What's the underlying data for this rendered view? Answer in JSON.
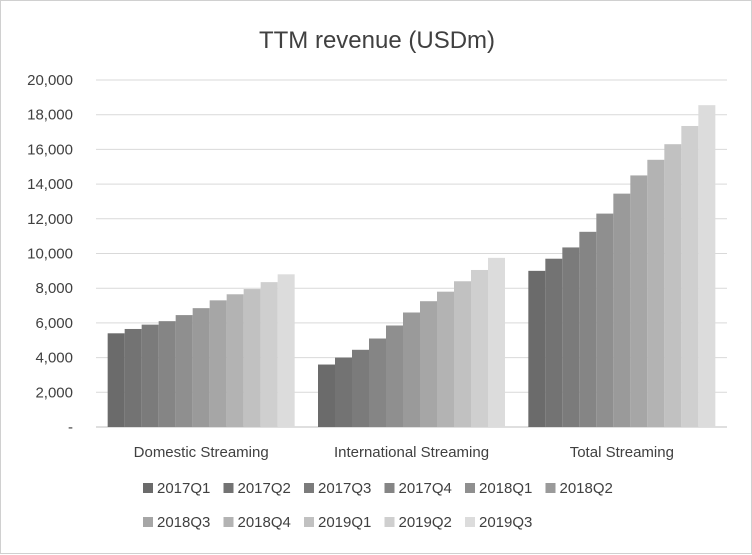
{
  "chart_data": {
    "type": "bar",
    "title": "TTM revenue (USDm)",
    "xlabel": "",
    "ylabel": "",
    "ylim": [
      0,
      20000
    ],
    "yticks": [
      0,
      2000,
      4000,
      6000,
      8000,
      10000,
      12000,
      14000,
      16000,
      18000,
      20000
    ],
    "ytick_labels": [
      "-",
      "2,000",
      "4,000",
      "6,000",
      "8,000",
      "10,000",
      "12,000",
      "14,000",
      "16,000",
      "18,000",
      "20,000"
    ],
    "grid": "horizontal",
    "legend_position": "bottom",
    "categories": [
      "Domestic Streaming",
      "International Streaming",
      "Total Streaming"
    ],
    "series": [
      {
        "name": "2017Q1",
        "color": "#6b6b6b",
        "values": [
          5400,
          3600,
          9000
        ]
      },
      {
        "name": "2017Q2",
        "color": "#737373",
        "values": [
          5650,
          4000,
          9700
        ]
      },
      {
        "name": "2017Q3",
        "color": "#7b7b7b",
        "values": [
          5900,
          4450,
          10350
        ]
      },
      {
        "name": "2017Q4",
        "color": "#858585",
        "values": [
          6100,
          5100,
          11250
        ]
      },
      {
        "name": "2018Q1",
        "color": "#8f8f8f",
        "values": [
          6450,
          5850,
          12300
        ]
      },
      {
        "name": "2018Q2",
        "color": "#9a9a9a",
        "values": [
          6850,
          6600,
          13450
        ]
      },
      {
        "name": "2018Q3",
        "color": "#a6a6a6",
        "values": [
          7300,
          7250,
          14500
        ]
      },
      {
        "name": "2018Q4",
        "color": "#b3b3b3",
        "values": [
          7650,
          7800,
          15400
        ]
      },
      {
        "name": "2019Q1",
        "color": "#c1c1c1",
        "values": [
          7950,
          8400,
          16300
        ]
      },
      {
        "name": "2019Q2",
        "color": "#cfcfcf",
        "values": [
          8350,
          9050,
          17350
        ]
      },
      {
        "name": "2019Q3",
        "color": "#dcdcdc",
        "values": [
          8800,
          9750,
          18550
        ]
      }
    ]
  }
}
